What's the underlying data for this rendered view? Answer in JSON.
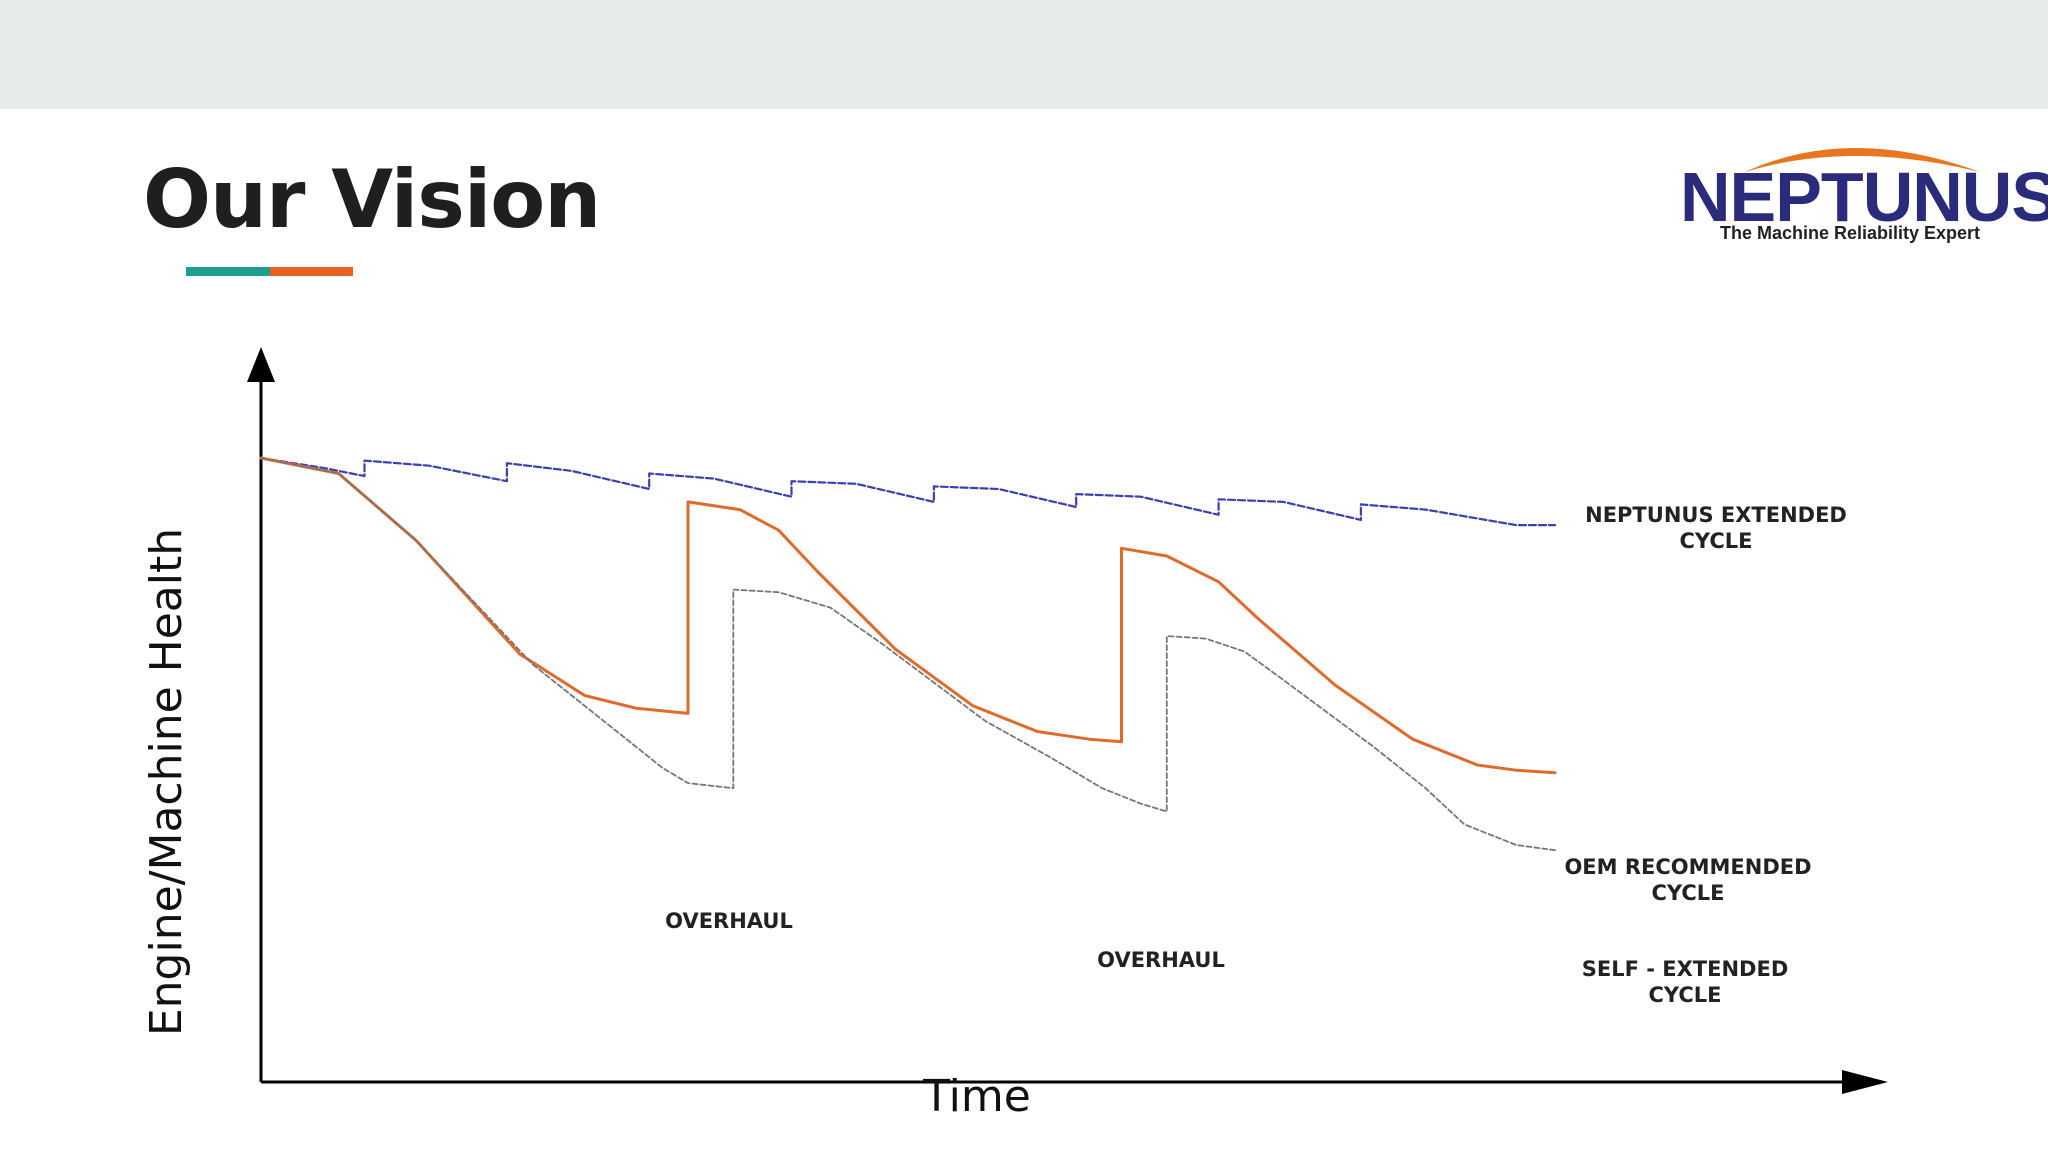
{
  "header": {
    "title": "Our Vision",
    "underline_colors": [
      "#1e9e8e",
      "#e8621f"
    ]
  },
  "logo": {
    "name": "NEPTUNUS",
    "tagline": "The Machine Reliability Expert",
    "name_color": "#2b2b7c",
    "arc_color": "#e8761f"
  },
  "colors": {
    "top_band": "#e6ecea",
    "neptunus_series": "#3b3fb0",
    "oem_series": "#e06a2c",
    "self_series": "#777777",
    "axis": "#000000"
  },
  "chart_data": {
    "type": "line",
    "title": "",
    "xlabel": "Time",
    "ylabel": "Engine/Machine Health",
    "xlim": [
      0,
      100
    ],
    "ylim": [
      0,
      100
    ],
    "grid": false,
    "series": [
      {
        "name": "NEPTUNUS EXTENDED\nCYCLE",
        "style": "dashed",
        "points": [
          [
            0,
            100
          ],
          [
            5,
            98
          ],
          [
            8,
            96.5
          ],
          [
            8,
            99.5
          ],
          [
            13,
            98.5
          ],
          [
            19,
            95.5
          ],
          [
            19,
            99
          ],
          [
            24,
            97.5
          ],
          [
            30,
            94
          ],
          [
            30,
            97
          ],
          [
            35,
            96
          ],
          [
            41,
            92.5
          ],
          [
            41,
            95.5
          ],
          [
            46,
            95
          ],
          [
            52,
            91.5
          ],
          [
            52,
            94.5
          ],
          [
            57,
            94
          ],
          [
            63,
            90.5
          ],
          [
            63,
            93
          ],
          [
            68,
            92.5
          ],
          [
            74,
            89
          ],
          [
            74,
            92
          ],
          [
            79,
            91.5
          ],
          [
            85,
            88
          ],
          [
            85,
            91
          ],
          [
            90,
            90
          ],
          [
            97,
            87
          ],
          [
            100,
            87
          ]
        ]
      },
      {
        "name": "OEM RECOMMENDED\nCYCLE",
        "style": "solid",
        "points": [
          [
            0,
            100
          ],
          [
            6,
            97
          ],
          [
            12,
            84
          ],
          [
            20,
            62
          ],
          [
            25,
            54
          ],
          [
            29,
            51.5
          ],
          [
            33,
            50.5
          ],
          [
            33,
            91.5
          ],
          [
            37,
            90
          ],
          [
            40,
            86
          ],
          [
            43,
            78
          ],
          [
            49,
            63
          ],
          [
            55,
            52
          ],
          [
            60,
            47
          ],
          [
            64,
            45.5
          ],
          [
            66.5,
            45
          ],
          [
            66.5,
            82.5
          ],
          [
            70,
            81
          ],
          [
            74,
            76
          ],
          [
            77,
            69
          ],
          [
            83,
            56
          ],
          [
            89,
            45.5
          ],
          [
            94,
            40.5
          ],
          [
            97,
            39.5
          ],
          [
            100,
            39
          ]
        ]
      },
      {
        "name": "SELF - EXTENDED\nCYCLE",
        "style": "dashed",
        "points": [
          [
            0,
            100
          ],
          [
            6,
            97
          ],
          [
            12,
            84
          ],
          [
            21,
            60
          ],
          [
            25,
            52
          ],
          [
            28.5,
            45
          ],
          [
            31,
            40
          ],
          [
            33,
            37
          ],
          [
            36.5,
            36
          ],
          [
            36.5,
            74.5
          ],
          [
            40,
            74
          ],
          [
            44,
            71
          ],
          [
            48,
            64
          ],
          [
            56,
            49
          ],
          [
            61,
            42
          ],
          [
            65,
            36
          ],
          [
            68,
            33
          ],
          [
            70,
            31.5
          ],
          [
            70,
            65.5
          ],
          [
            73,
            65
          ],
          [
            76,
            62.5
          ],
          [
            79,
            57
          ],
          [
            86,
            44
          ],
          [
            90,
            36
          ],
          [
            93,
            29
          ],
          [
            97,
            25
          ],
          [
            100,
            24
          ]
        ]
      }
    ],
    "annotations": [
      "OVERHAUL",
      "OVERHAUL"
    ]
  }
}
